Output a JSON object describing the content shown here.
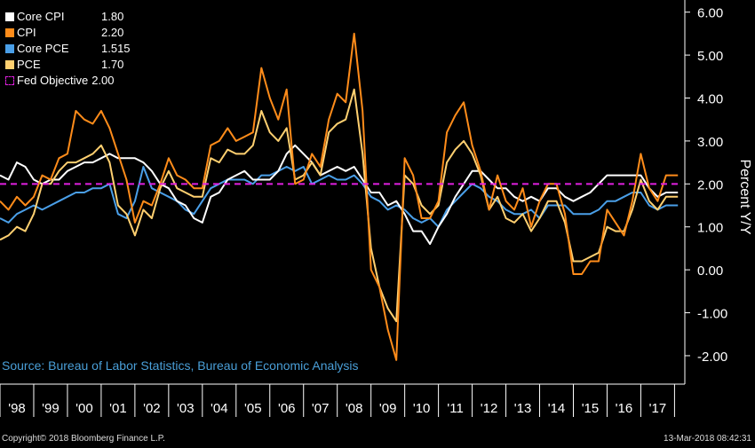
{
  "legend": {
    "items": [
      {
        "name": "Core CPI",
        "value": "1.80",
        "color": "#ffffff"
      },
      {
        "name": "CPI",
        "value": "2.20",
        "color": "#ff8c1a"
      },
      {
        "name": "Core PCE",
        "value": "1.515",
        "color": "#4a9fe8"
      },
      {
        "name": "PCE",
        "value": "1.70",
        "color": "#ffd070"
      }
    ],
    "objective": {
      "name": "Fed Objective",
      "value": "2.00",
      "color": "#e020e0"
    }
  },
  "source": "Source: Bureau of Labor Statistics, Bureau of Economic Analysis",
  "footer": {
    "copyright": "Copyright© 2018 Bloomberg Finance L.P.",
    "timestamp": "13-Mar-2018 08:42:31"
  },
  "chart_data": {
    "type": "line",
    "ylabel": "Percent Y/Y",
    "ylim": [
      -2.6,
      6.2
    ],
    "yticks": [
      "6.00",
      "5.00",
      "4.00",
      "3.00",
      "2.00",
      "1.00",
      "0.00",
      "-1.00",
      "-2.00"
    ],
    "ytick_values": [
      6,
      5,
      4,
      3,
      2,
      1,
      0,
      -1,
      -2
    ],
    "xlim": [
      1998.0,
      2018.2
    ],
    "xticks": [
      "'98",
      "'99",
      "'00",
      "'01",
      "'02",
      "'03",
      "'04",
      "'05",
      "'06",
      "'07",
      "'08",
      "'09",
      "'10",
      "'11",
      "'12",
      "'13",
      "'14",
      "'15",
      "'16",
      "'17"
    ],
    "grid": false,
    "legend_position": "top-left",
    "reference_line": {
      "name": "Fed Objective",
      "value": 2.0
    },
    "series": [
      {
        "name": "Core CPI",
        "color": "#ffffff",
        "x": [
          1998.0,
          1998.25,
          1998.5,
          1998.75,
          1999.0,
          1999.25,
          1999.5,
          1999.75,
          2000.0,
          2000.25,
          2000.5,
          2000.75,
          2001.0,
          2001.25,
          2001.5,
          2001.75,
          2002.0,
          2002.25,
          2002.5,
          2002.75,
          2003.0,
          2003.25,
          2003.5,
          2003.75,
          2004.0,
          2004.25,
          2004.5,
          2004.75,
          2005.0,
          2005.25,
          2005.5,
          2005.75,
          2006.0,
          2006.25,
          2006.5,
          2006.75,
          2007.0,
          2007.25,
          2007.5,
          2007.75,
          2008.0,
          2008.25,
          2008.5,
          2008.75,
          2009.0,
          2009.25,
          2009.5,
          2009.75,
          2010.0,
          2010.25,
          2010.5,
          2010.75,
          2011.0,
          2011.25,
          2011.5,
          2011.75,
          2012.0,
          2012.25,
          2012.5,
          2012.75,
          2013.0,
          2013.25,
          2013.5,
          2013.75,
          2014.0,
          2014.25,
          2014.5,
          2014.75,
          2015.0,
          2015.25,
          2015.5,
          2015.75,
          2016.0,
          2016.25,
          2016.5,
          2016.75,
          2017.0,
          2017.25,
          2017.5,
          2017.75,
          2018.1
        ],
        "y": [
          2.2,
          2.1,
          2.5,
          2.4,
          2.1,
          2.0,
          2.1,
          2.1,
          2.3,
          2.4,
          2.5,
          2.5,
          2.6,
          2.7,
          2.6,
          2.6,
          2.6,
          2.5,
          2.3,
          2.0,
          1.9,
          1.6,
          1.5,
          1.2,
          1.1,
          1.7,
          1.8,
          2.1,
          2.2,
          2.3,
          2.1,
          2.1,
          2.1,
          2.3,
          2.7,
          2.9,
          2.7,
          2.5,
          2.2,
          2.3,
          2.4,
          2.3,
          2.4,
          2.1,
          1.8,
          1.8,
          1.5,
          1.6,
          1.3,
          0.9,
          0.9,
          0.6,
          1.0,
          1.3,
          1.7,
          2.0,
          2.3,
          2.3,
          2.1,
          1.9,
          1.9,
          1.7,
          1.6,
          1.7,
          1.6,
          1.9,
          1.9,
          1.7,
          1.6,
          1.7,
          1.8,
          2.0,
          2.2,
          2.2,
          2.2,
          2.2,
          2.2,
          1.9,
          1.7,
          1.8,
          1.8
        ]
      },
      {
        "name": "CPI",
        "color": "#ff8c1a",
        "x": [
          1998.0,
          1998.25,
          1998.5,
          1998.75,
          1999.0,
          1999.25,
          1999.5,
          1999.75,
          2000.0,
          2000.25,
          2000.5,
          2000.75,
          2001.0,
          2001.25,
          2001.5,
          2001.75,
          2002.0,
          2002.25,
          2002.5,
          2002.75,
          2003.0,
          2003.25,
          2003.5,
          2003.75,
          2004.0,
          2004.25,
          2004.5,
          2004.75,
          2005.0,
          2005.25,
          2005.5,
          2005.75,
          2006.0,
          2006.25,
          2006.5,
          2006.75,
          2007.0,
          2007.25,
          2007.5,
          2007.75,
          2008.0,
          2008.25,
          2008.5,
          2008.75,
          2009.0,
          2009.25,
          2009.5,
          2009.75,
          2010.0,
          2010.25,
          2010.5,
          2010.75,
          2011.0,
          2011.25,
          2011.5,
          2011.75,
          2012.0,
          2012.25,
          2012.5,
          2012.75,
          2013.0,
          2013.25,
          2013.5,
          2013.75,
          2014.0,
          2014.25,
          2014.5,
          2014.75,
          2015.0,
          2015.25,
          2015.5,
          2015.75,
          2016.0,
          2016.25,
          2016.5,
          2016.75,
          2017.0,
          2017.25,
          2017.5,
          2017.75,
          2018.1
        ],
        "y": [
          1.6,
          1.4,
          1.7,
          1.5,
          1.7,
          2.2,
          2.1,
          2.6,
          2.7,
          3.7,
          3.5,
          3.4,
          3.7,
          3.3,
          2.7,
          2.1,
          1.1,
          1.6,
          1.5,
          2.0,
          2.6,
          2.2,
          2.1,
          1.9,
          1.9,
          2.9,
          3.0,
          3.3,
          3.0,
          3.1,
          3.2,
          4.7,
          4.0,
          3.5,
          4.2,
          2.0,
          2.1,
          2.7,
          2.4,
          3.5,
          4.1,
          3.9,
          5.5,
          3.7,
          0.0,
          -0.4,
          -1.4,
          -2.1,
          2.6,
          2.2,
          1.2,
          1.2,
          1.6,
          3.2,
          3.6,
          3.9,
          2.9,
          2.3,
          1.4,
          2.2,
          1.6,
          1.4,
          1.9,
          1.0,
          1.6,
          2.0,
          2.0,
          1.3,
          -0.1,
          -0.1,
          0.2,
          0.2,
          1.4,
          1.1,
          0.8,
          1.6,
          2.7,
          1.9,
          1.6,
          2.2,
          2.2
        ]
      },
      {
        "name": "Core PCE",
        "color": "#4a9fe8",
        "x": [
          1998.0,
          1998.25,
          1998.5,
          1998.75,
          1999.0,
          1999.25,
          1999.5,
          1999.75,
          2000.0,
          2000.25,
          2000.5,
          2000.75,
          2001.0,
          2001.25,
          2001.5,
          2001.75,
          2002.0,
          2002.25,
          2002.5,
          2002.75,
          2003.0,
          2003.25,
          2003.5,
          2003.75,
          2004.0,
          2004.25,
          2004.5,
          2004.75,
          2005.0,
          2005.25,
          2005.5,
          2005.75,
          2006.0,
          2006.25,
          2006.5,
          2006.75,
          2007.0,
          2007.25,
          2007.5,
          2007.75,
          2008.0,
          2008.25,
          2008.5,
          2008.75,
          2009.0,
          2009.25,
          2009.5,
          2009.75,
          2010.0,
          2010.25,
          2010.5,
          2010.75,
          2011.0,
          2011.25,
          2011.5,
          2011.75,
          2012.0,
          2012.25,
          2012.5,
          2012.75,
          2013.0,
          2013.25,
          2013.5,
          2013.75,
          2014.0,
          2014.25,
          2014.5,
          2014.75,
          2015.0,
          2015.25,
          2015.5,
          2015.75,
          2016.0,
          2016.25,
          2016.5,
          2016.75,
          2017.0,
          2017.25,
          2017.5,
          2017.75,
          2018.1
        ],
        "y": [
          1.2,
          1.1,
          1.3,
          1.4,
          1.5,
          1.4,
          1.5,
          1.6,
          1.7,
          1.8,
          1.8,
          1.9,
          1.9,
          2.0,
          1.3,
          1.2,
          1.6,
          2.4,
          1.9,
          1.8,
          1.7,
          1.6,
          1.4,
          1.3,
          1.6,
          1.9,
          2.0,
          2.1,
          2.1,
          2.1,
          2.0,
          2.2,
          2.2,
          2.3,
          2.4,
          2.3,
          2.4,
          2.0,
          2.1,
          2.2,
          2.1,
          2.1,
          2.2,
          2.0,
          1.7,
          1.6,
          1.4,
          1.5,
          1.4,
          1.2,
          1.1,
          1.2,
          1.0,
          1.4,
          1.6,
          1.8,
          2.0,
          1.9,
          1.7,
          1.6,
          1.4,
          1.3,
          1.3,
          1.4,
          1.2,
          1.5,
          1.5,
          1.5,
          1.3,
          1.3,
          1.3,
          1.4,
          1.6,
          1.6,
          1.7,
          1.8,
          1.8,
          1.5,
          1.4,
          1.5,
          1.5
        ]
      },
      {
        "name": "PCE",
        "color": "#ffd070",
        "x": [
          1998.0,
          1998.25,
          1998.5,
          1998.75,
          1999.0,
          1999.25,
          1999.5,
          1999.75,
          2000.0,
          2000.25,
          2000.5,
          2000.75,
          2001.0,
          2001.25,
          2001.5,
          2001.75,
          2002.0,
          2002.25,
          2002.5,
          2002.75,
          2003.0,
          2003.25,
          2003.5,
          2003.75,
          2004.0,
          2004.25,
          2004.5,
          2004.75,
          2005.0,
          2005.25,
          2005.5,
          2005.75,
          2006.0,
          2006.25,
          2006.5,
          2006.75,
          2007.0,
          2007.25,
          2007.5,
          2007.75,
          2008.0,
          2008.25,
          2008.5,
          2008.75,
          2009.0,
          2009.25,
          2009.5,
          2009.75,
          2010.0,
          2010.25,
          2010.5,
          2010.75,
          2011.0,
          2011.25,
          2011.5,
          2011.75,
          2012.0,
          2012.25,
          2012.5,
          2012.75,
          2013.0,
          2013.25,
          2013.5,
          2013.75,
          2014.0,
          2014.25,
          2014.5,
          2014.75,
          2015.0,
          2015.25,
          2015.5,
          2015.75,
          2016.0,
          2016.25,
          2016.5,
          2016.75,
          2017.0,
          2017.25,
          2017.5,
          2017.75,
          2018.1
        ],
        "y": [
          0.7,
          0.8,
          1.0,
          0.9,
          1.3,
          2.0,
          2.0,
          2.3,
          2.5,
          2.5,
          2.6,
          2.7,
          2.9,
          2.5,
          1.5,
          1.3,
          0.8,
          1.4,
          1.2,
          1.9,
          2.3,
          1.9,
          1.8,
          1.7,
          1.7,
          2.6,
          2.5,
          2.8,
          2.7,
          2.7,
          2.9,
          3.7,
          3.2,
          3.0,
          3.3,
          2.1,
          2.2,
          2.5,
          2.2,
          3.2,
          3.4,
          3.5,
          4.2,
          2.7,
          0.5,
          -0.4,
          -0.9,
          -1.2,
          2.2,
          2.0,
          1.5,
          1.3,
          1.5,
          2.5,
          2.8,
          3.0,
          2.7,
          2.2,
          1.4,
          1.7,
          1.2,
          1.1,
          1.3,
          0.9,
          1.2,
          1.6,
          1.6,
          1.1,
          0.2,
          0.2,
          0.3,
          0.4,
          1.0,
          0.9,
          0.9,
          1.4,
          2.1,
          1.6,
          1.4,
          1.7,
          1.7
        ]
      }
    ]
  }
}
